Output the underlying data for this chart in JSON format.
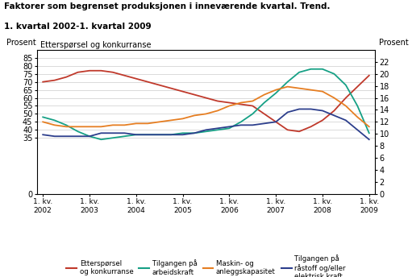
{
  "title_line1": "Faktorer som begrenset produksjonen i inneværende kvartal. Trend.",
  "title_line2": "1. kvartal 2002-1. kvartal 2009",
  "ylabel_left": "Prosent",
  "ylabel_right": "Prosent",
  "label_top_left": "Etterspørsel og konkurranse",
  "x_labels": [
    "1. kv.\n2002",
    "1. kv.\n2003",
    "1. kv.\n2004",
    "1. kv.\n2005",
    "1. kv.\n2006",
    "1. kv.\n2007",
    "1. kv.\n2008",
    "1. kv.\n2009"
  ],
  "x_positions": [
    0,
    4,
    8,
    12,
    16,
    20,
    24,
    28
  ],
  "ylim_left": [
    0,
    90
  ],
  "ylim_right": [
    0,
    24
  ],
  "yticks_left": [
    0,
    35,
    40,
    45,
    50,
    55,
    60,
    65,
    70,
    75,
    80,
    85
  ],
  "yticks_right": [
    0,
    2,
    4,
    6,
    8,
    10,
    12,
    14,
    16,
    18,
    20,
    22
  ],
  "series": {
    "etterspørsel": {
      "color": "#c0392b",
      "label": "Etterspørsel\nog konkurranse",
      "data_x": [
        0,
        1,
        2,
        3,
        4,
        5,
        6,
        7,
        8,
        9,
        10,
        11,
        12,
        13,
        14,
        15,
        16,
        17,
        18,
        19,
        20,
        21,
        22,
        23,
        24,
        25,
        26,
        27,
        28
      ],
      "data_y": [
        70,
        71,
        73,
        76,
        77,
        77,
        76,
        74,
        72,
        70,
        68,
        66,
        64,
        62,
        60,
        58,
        57,
        56,
        55,
        50,
        45,
        40,
        39,
        42,
        46,
        52,
        60,
        67,
        74
      ]
    },
    "tilgang_arbeid": {
      "color": "#16a085",
      "label": "Tilgangen på\narbeidskraft",
      "data_x": [
        0,
        1,
        2,
        3,
        4,
        5,
        6,
        7,
        8,
        9,
        10,
        11,
        12,
        13,
        14,
        15,
        16,
        17,
        18,
        19,
        20,
        21,
        22,
        23,
        24,
        25,
        26,
        27,
        28
      ],
      "data_y": [
        48,
        46,
        43,
        39,
        36,
        34,
        35,
        36,
        37,
        37,
        37,
        37,
        38,
        38,
        39,
        40,
        41,
        45,
        50,
        57,
        63,
        70,
        76,
        78,
        78,
        75,
        68,
        55,
        38
      ]
    },
    "maskin": {
      "color": "#e67e22",
      "label": "Maskin- og\nanleggskapasitet",
      "data_x": [
        0,
        1,
        2,
        3,
        4,
        5,
        6,
        7,
        8,
        9,
        10,
        11,
        12,
        13,
        14,
        15,
        16,
        17,
        18,
        19,
        20,
        21,
        22,
        23,
        24,
        25,
        26,
        27,
        28
      ],
      "data_y": [
        45,
        43,
        42,
        42,
        42,
        42,
        43,
        43,
        44,
        44,
        45,
        46,
        47,
        49,
        50,
        52,
        55,
        57,
        58,
        62,
        65,
        67,
        66,
        65,
        64,
        60,
        55,
        48,
        42
      ]
    },
    "tilgang_råstoff": {
      "color": "#2c3e8c",
      "label": "Tilgangen på\nråstoff og/eller\nelektrisk kraft",
      "data_x": [
        0,
        1,
        2,
        3,
        4,
        5,
        6,
        7,
        8,
        9,
        10,
        11,
        12,
        13,
        14,
        15,
        16,
        17,
        18,
        19,
        20,
        21,
        22,
        23,
        24,
        25,
        26,
        27,
        28
      ],
      "data_y": [
        37,
        36,
        36,
        36,
        36,
        38,
        38,
        38,
        37,
        37,
        37,
        37,
        37,
        38,
        40,
        41,
        42,
        43,
        43,
        44,
        45,
        51,
        53,
        53,
        52,
        49,
        46,
        40,
        34
      ]
    }
  },
  "background_color": "#ffffff",
  "grid_color": "#cccccc"
}
